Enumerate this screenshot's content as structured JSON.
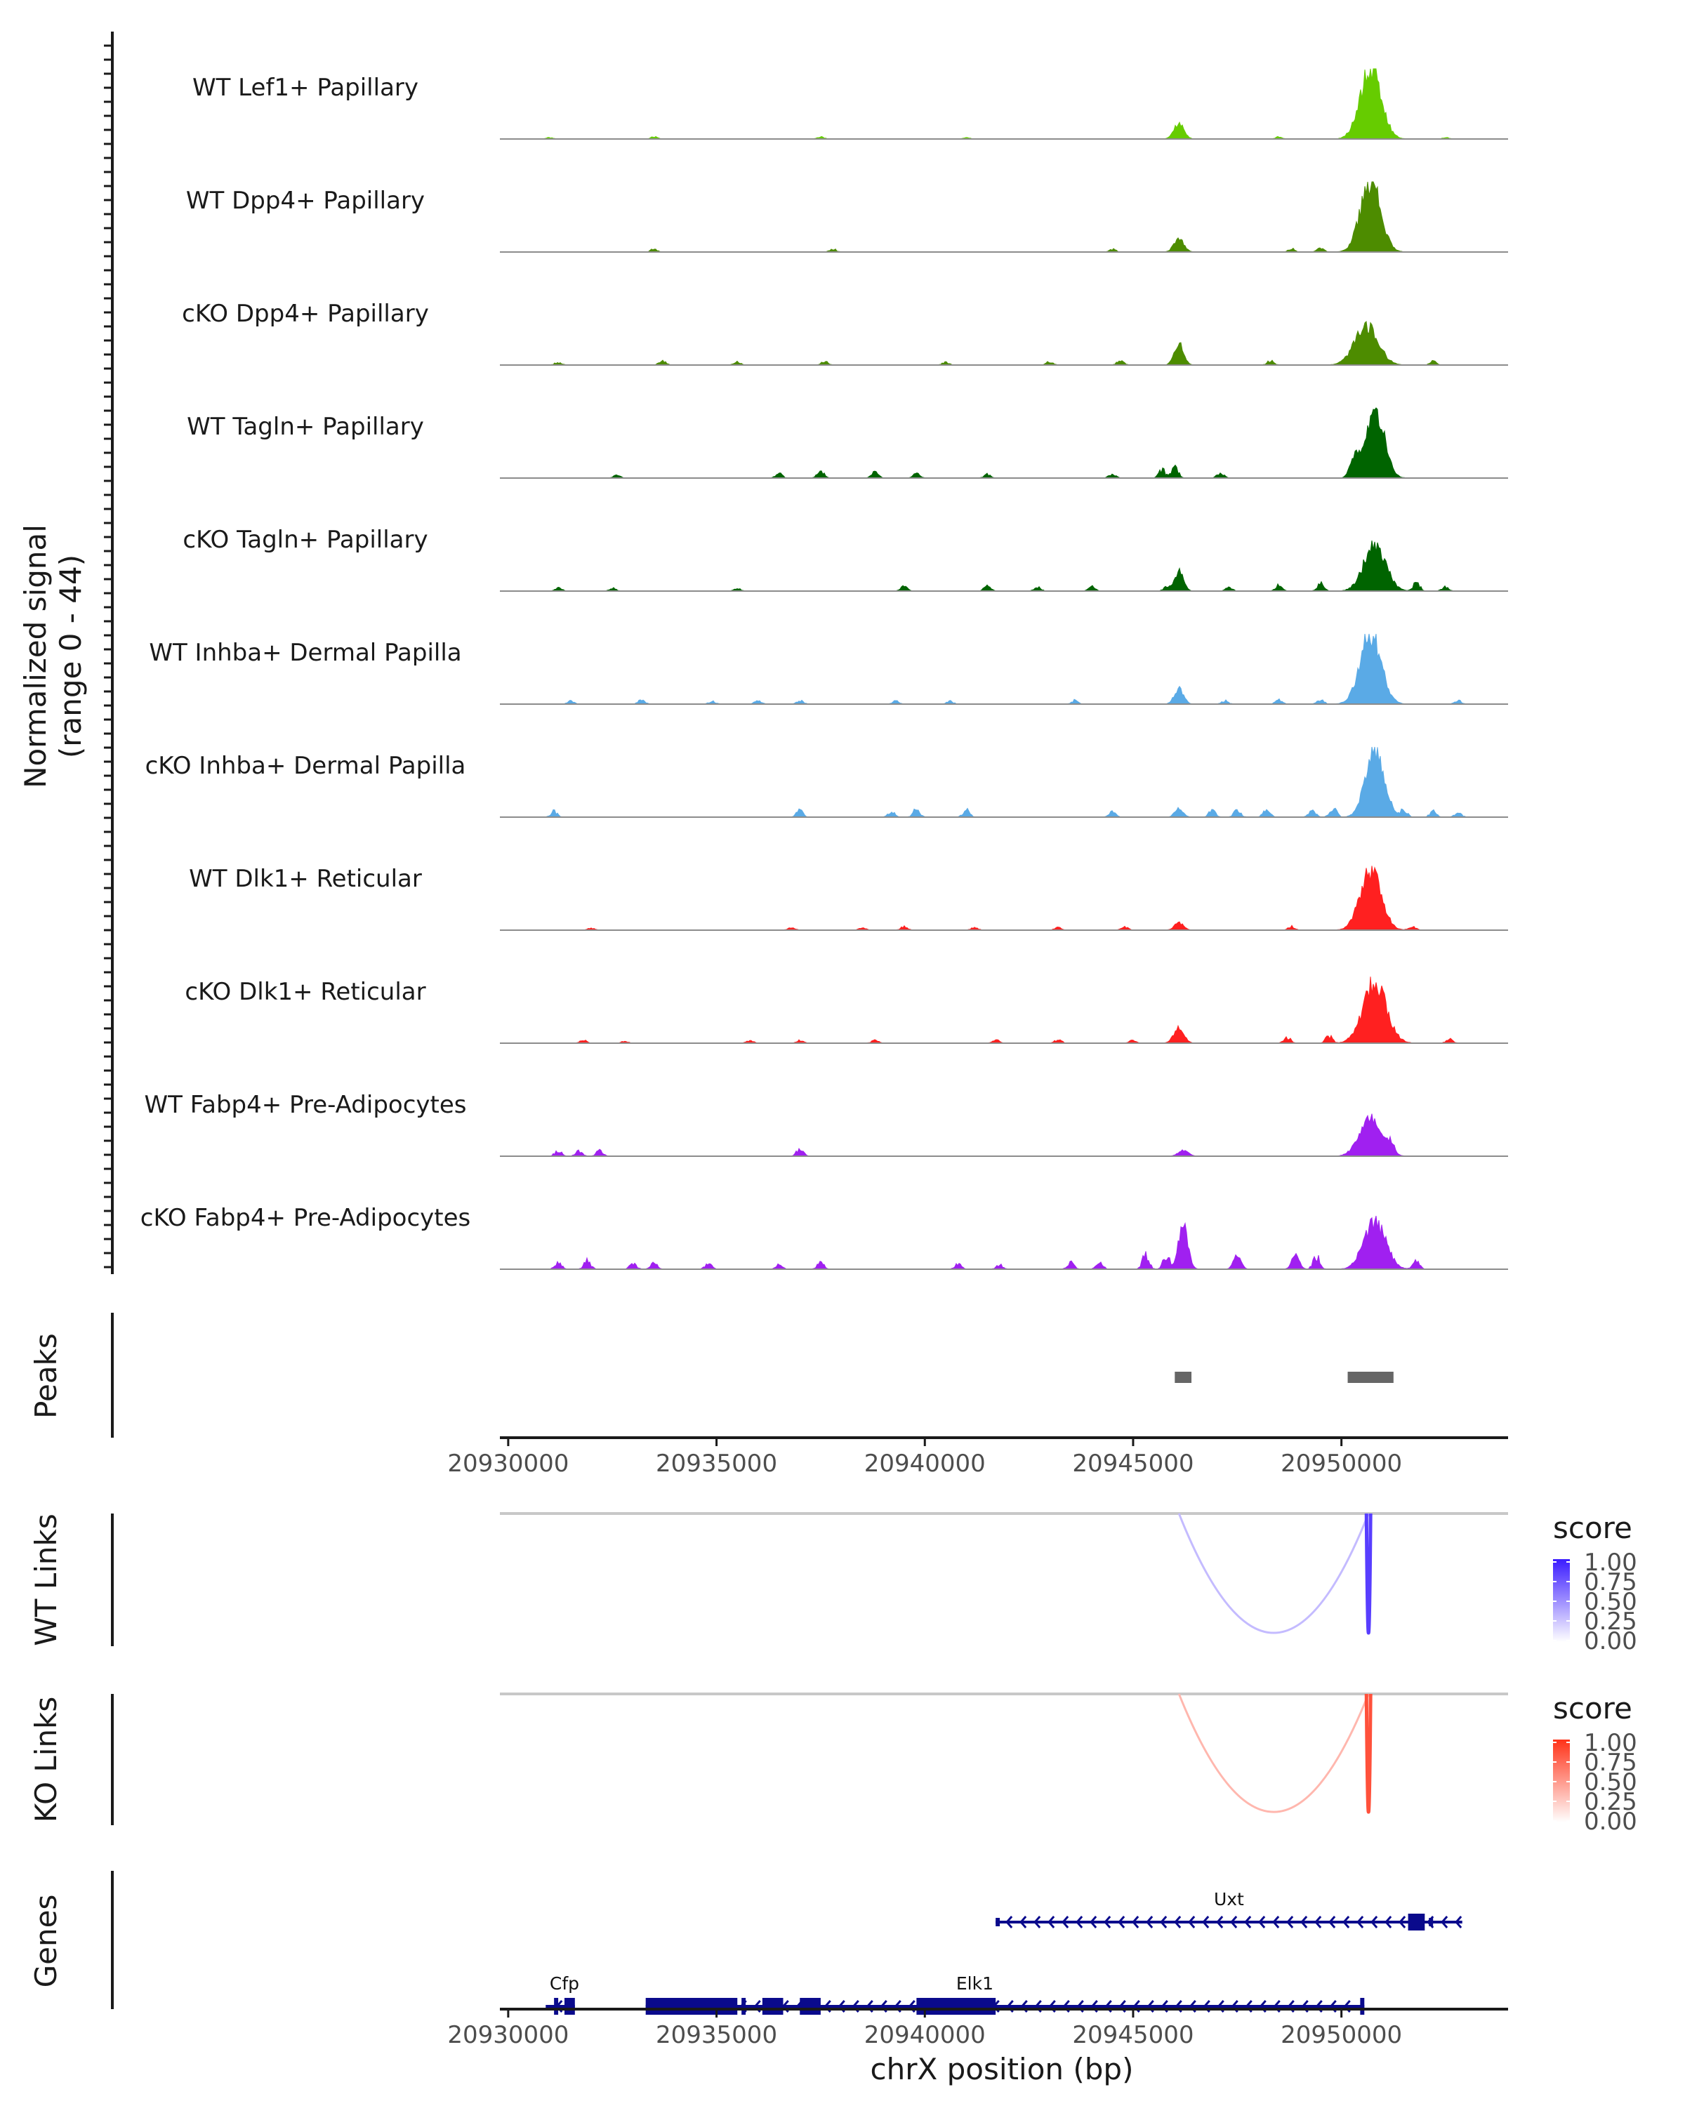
{
  "chart_data": {
    "type": "area",
    "title": "",
    "ylabel_signal": [
      "Normalized signal",
      "(range 0 - 44)"
    ],
    "signal_range": [
      0,
      44
    ],
    "xlabel": "chrX position (bp)",
    "xlim": [
      20929800,
      20954000
    ],
    "x_ticks": [
      20930000,
      20935000,
      20940000,
      20945000,
      20950000
    ],
    "x_tick_labels": [
      "20930000",
      "20935000",
      "20940000",
      "20945000",
      "20950000"
    ],
    "tracks": [
      {
        "name": "WT Lef1+ Papillary",
        "color": "#66cc00",
        "peaks": [
          [
            20946100,
            0.22,
            120
          ],
          [
            20950700,
            1.0,
            250
          ]
        ],
        "noise": [
          [
            20931000,
            0.02
          ],
          [
            20933500,
            0.03
          ],
          [
            20937500,
            0.03
          ],
          [
            20941000,
            0.02
          ],
          [
            20948500,
            0.03
          ],
          [
            20952500,
            0.02
          ]
        ]
      },
      {
        "name": "WT Dpp4+ Papillary",
        "color": "#4d8c00",
        "peaks": [
          [
            20946100,
            0.18,
            120
          ],
          [
            20950700,
            1.0,
            240
          ]
        ],
        "noise": [
          [
            20933500,
            0.04
          ],
          [
            20937800,
            0.04
          ],
          [
            20944500,
            0.04
          ],
          [
            20948800,
            0.05
          ],
          [
            20949500,
            0.05
          ]
        ]
      },
      {
        "name": "cKO Dpp4+ Papillary",
        "color": "#4d8c00",
        "peaks": [
          [
            20946100,
            0.3,
            110
          ],
          [
            20950600,
            0.55,
            280
          ]
        ],
        "noise": [
          [
            20931200,
            0.04
          ],
          [
            20933700,
            0.06
          ],
          [
            20935500,
            0.04
          ],
          [
            20937600,
            0.05
          ],
          [
            20940500,
            0.04
          ],
          [
            20943000,
            0.05
          ],
          [
            20944700,
            0.07
          ],
          [
            20948300,
            0.06
          ],
          [
            20952200,
            0.05
          ]
        ]
      },
      {
        "name": "WT Tagln+ Papillary",
        "color": "#006400",
        "peaks": [
          [
            20950300,
            0.25,
            100
          ],
          [
            20950800,
            1.0,
            220
          ]
        ],
        "noise": [
          [
            20932600,
            0.04
          ],
          [
            20936500,
            0.06
          ],
          [
            20937500,
            0.1
          ],
          [
            20938800,
            0.08
          ],
          [
            20939800,
            0.07
          ],
          [
            20941500,
            0.05
          ],
          [
            20944500,
            0.06
          ],
          [
            20945700,
            0.11
          ],
          [
            20946000,
            0.18
          ],
          [
            20947100,
            0.08
          ]
        ]
      },
      {
        "name": "cKO Tagln+ Papillary",
        "color": "#006400",
        "peaks": [
          [
            20946100,
            0.28,
            110
          ],
          [
            20950800,
            0.65,
            260
          ]
        ],
        "noise": [
          [
            20931200,
            0.05
          ],
          [
            20932500,
            0.04
          ],
          [
            20935500,
            0.04
          ],
          [
            20939500,
            0.06
          ],
          [
            20941500,
            0.07
          ],
          [
            20942700,
            0.06
          ],
          [
            20944000,
            0.06
          ],
          [
            20945800,
            0.05
          ],
          [
            20947300,
            0.05
          ],
          [
            20948500,
            0.08
          ],
          [
            20949500,
            0.1
          ],
          [
            20951800,
            0.12
          ],
          [
            20952500,
            0.06
          ]
        ]
      },
      {
        "name": "WT Inhba+ Dermal Papilla",
        "color": "#5aaae6",
        "peaks": [
          [
            20946100,
            0.22,
            110
          ],
          [
            20950700,
            1.0,
            250
          ]
        ],
        "noise": [
          [
            20931500,
            0.04
          ],
          [
            20933200,
            0.06
          ],
          [
            20934900,
            0.04
          ],
          [
            20936000,
            0.05
          ],
          [
            20937000,
            0.05
          ],
          [
            20939300,
            0.04
          ],
          [
            20940600,
            0.04
          ],
          [
            20943600,
            0.05
          ],
          [
            20947200,
            0.05
          ],
          [
            20948500,
            0.06
          ],
          [
            20949500,
            0.06
          ],
          [
            20952800,
            0.05
          ]
        ]
      },
      {
        "name": "cKO Inhba+ Dermal Papilla",
        "color": "#5aaae6",
        "peaks": [
          [
            20946100,
            0.12,
            100
          ],
          [
            20950800,
            1.0,
            220
          ]
        ],
        "noise": [
          [
            20931100,
            0.08
          ],
          [
            20937000,
            0.09
          ],
          [
            20939200,
            0.08
          ],
          [
            20939800,
            0.11
          ],
          [
            20941000,
            0.1
          ],
          [
            20944500,
            0.07
          ],
          [
            20946900,
            0.1
          ],
          [
            20947500,
            0.1
          ],
          [
            20948200,
            0.12
          ],
          [
            20949300,
            0.1
          ],
          [
            20949800,
            0.14
          ],
          [
            20951500,
            0.1
          ],
          [
            20952200,
            0.08
          ],
          [
            20952800,
            0.07
          ]
        ]
      },
      {
        "name": "WT Dlk1+ Reticular",
        "color": "#ff2020",
        "peaks": [
          [
            20946100,
            0.1,
            110
          ],
          [
            20950700,
            0.85,
            250
          ]
        ],
        "noise": [
          [
            20932000,
            0.03
          ],
          [
            20936800,
            0.04
          ],
          [
            20938500,
            0.04
          ],
          [
            20939500,
            0.05
          ],
          [
            20941200,
            0.04
          ],
          [
            20943200,
            0.04
          ],
          [
            20944800,
            0.05
          ],
          [
            20948800,
            0.05
          ],
          [
            20951700,
            0.06
          ]
        ]
      },
      {
        "name": "cKO Dlk1+ Reticular",
        "color": "#ff2020",
        "peaks": [
          [
            20946100,
            0.22,
            120
          ],
          [
            20950800,
            0.85,
            280
          ]
        ],
        "noise": [
          [
            20931800,
            0.04
          ],
          [
            20932800,
            0.03
          ],
          [
            20935800,
            0.04
          ],
          [
            20937000,
            0.04
          ],
          [
            20938800,
            0.04
          ],
          [
            20941700,
            0.05
          ],
          [
            20943200,
            0.05
          ],
          [
            20945000,
            0.04
          ],
          [
            20948700,
            0.08
          ],
          [
            20949700,
            0.1
          ],
          [
            20952600,
            0.06
          ]
        ]
      },
      {
        "name": "WT Fabp4+ Pre-Adipocytes",
        "color": "#a020f0",
        "peaks": [
          [
            20946200,
            0.08,
            120
          ],
          [
            20950700,
            0.55,
            260
          ]
        ],
        "noise": [
          [
            20931200,
            0.08
          ],
          [
            20931700,
            0.07
          ],
          [
            20932200,
            0.08
          ],
          [
            20937000,
            0.1
          ],
          [
            20951200,
            0.15
          ]
        ]
      },
      {
        "name": "cKO Fabp4+ Pre-Adipocytes",
        "color": "#a020f0",
        "peaks": [
          [
            20946200,
            0.65,
            110
          ],
          [
            20950800,
            0.68,
            260
          ],
          [
            20947500,
            0.2,
            90
          ],
          [
            20948900,
            0.22,
            90
          ]
        ],
        "noise": [
          [
            20931200,
            0.1
          ],
          [
            20931900,
            0.12
          ],
          [
            20933000,
            0.08
          ],
          [
            20933500,
            0.08
          ],
          [
            20934800,
            0.08
          ],
          [
            20936500,
            0.06
          ],
          [
            20937500,
            0.09
          ],
          [
            20940800,
            0.07
          ],
          [
            20941800,
            0.06
          ],
          [
            20943500,
            0.09
          ],
          [
            20944200,
            0.1
          ],
          [
            20945300,
            0.2
          ],
          [
            20945800,
            0.18
          ],
          [
            20949400,
            0.18
          ],
          [
            20951800,
            0.12
          ]
        ]
      }
    ],
    "peaks_track": {
      "label": "Peaks",
      "regions": [
        [
          20946000,
          20946400
        ],
        [
          20950150,
          20951250
        ]
      ]
    },
    "links": [
      {
        "label": "WT Links",
        "legend_title": "score",
        "legend_ticks": [
          "1.00",
          "0.75",
          "0.50",
          "0.25",
          "0.00"
        ],
        "color_low": "#ffffff",
        "color_high": "#3b1cff",
        "arcs": [
          {
            "start": 20946100,
            "end": 20950650,
            "score": 0.3
          },
          {
            "start": 20950600,
            "end": 20950700,
            "score": 0.85
          }
        ]
      },
      {
        "label": "KO Links",
        "legend_title": "score",
        "legend_ticks": [
          "1.00",
          "0.75",
          "0.50",
          "0.25",
          "0.00"
        ],
        "color_low": "#ffffff",
        "color_high": "#ff3218",
        "arcs": [
          {
            "start": 20946100,
            "end": 20950650,
            "score": 0.35
          },
          {
            "start": 20950600,
            "end": 20950700,
            "score": 0.85
          }
        ]
      }
    ],
    "genes": {
      "label": "Genes",
      "items": [
        {
          "name": "Uxt",
          "strand": "-",
          "row": 0,
          "start": 20941700,
          "end": 20952900,
          "label_pos": 20947300,
          "exons": [
            [
              20941700,
              20941800,
              "thin"
            ],
            [
              20951600,
              20952000,
              "thick"
            ],
            [
              20952100,
              20952200,
              "thin"
            ]
          ]
        },
        {
          "name": "Cfp",
          "strand": "-",
          "row": 1,
          "start": 20930900,
          "end": 20931600,
          "label_pos": 20931350,
          "exons": [
            [
              20931100,
              20931200,
              "thick"
            ],
            [
              20931350,
              20931600,
              "thick"
            ]
          ]
        },
        {
          "name": "Elk1",
          "strand": "-",
          "row": 1,
          "start": 20933300,
          "end": 20950550,
          "label_pos": 20941200,
          "exons": [
            [
              20933300,
              20935500,
              "thick"
            ],
            [
              20935600,
              20935700,
              "thick"
            ],
            [
              20936100,
              20936600,
              "thick"
            ],
            [
              20937000,
              20937500,
              "thick"
            ],
            [
              20939800,
              20941700,
              "thick"
            ],
            [
              20950450,
              20950550,
              "thick"
            ]
          ]
        }
      ]
    }
  }
}
